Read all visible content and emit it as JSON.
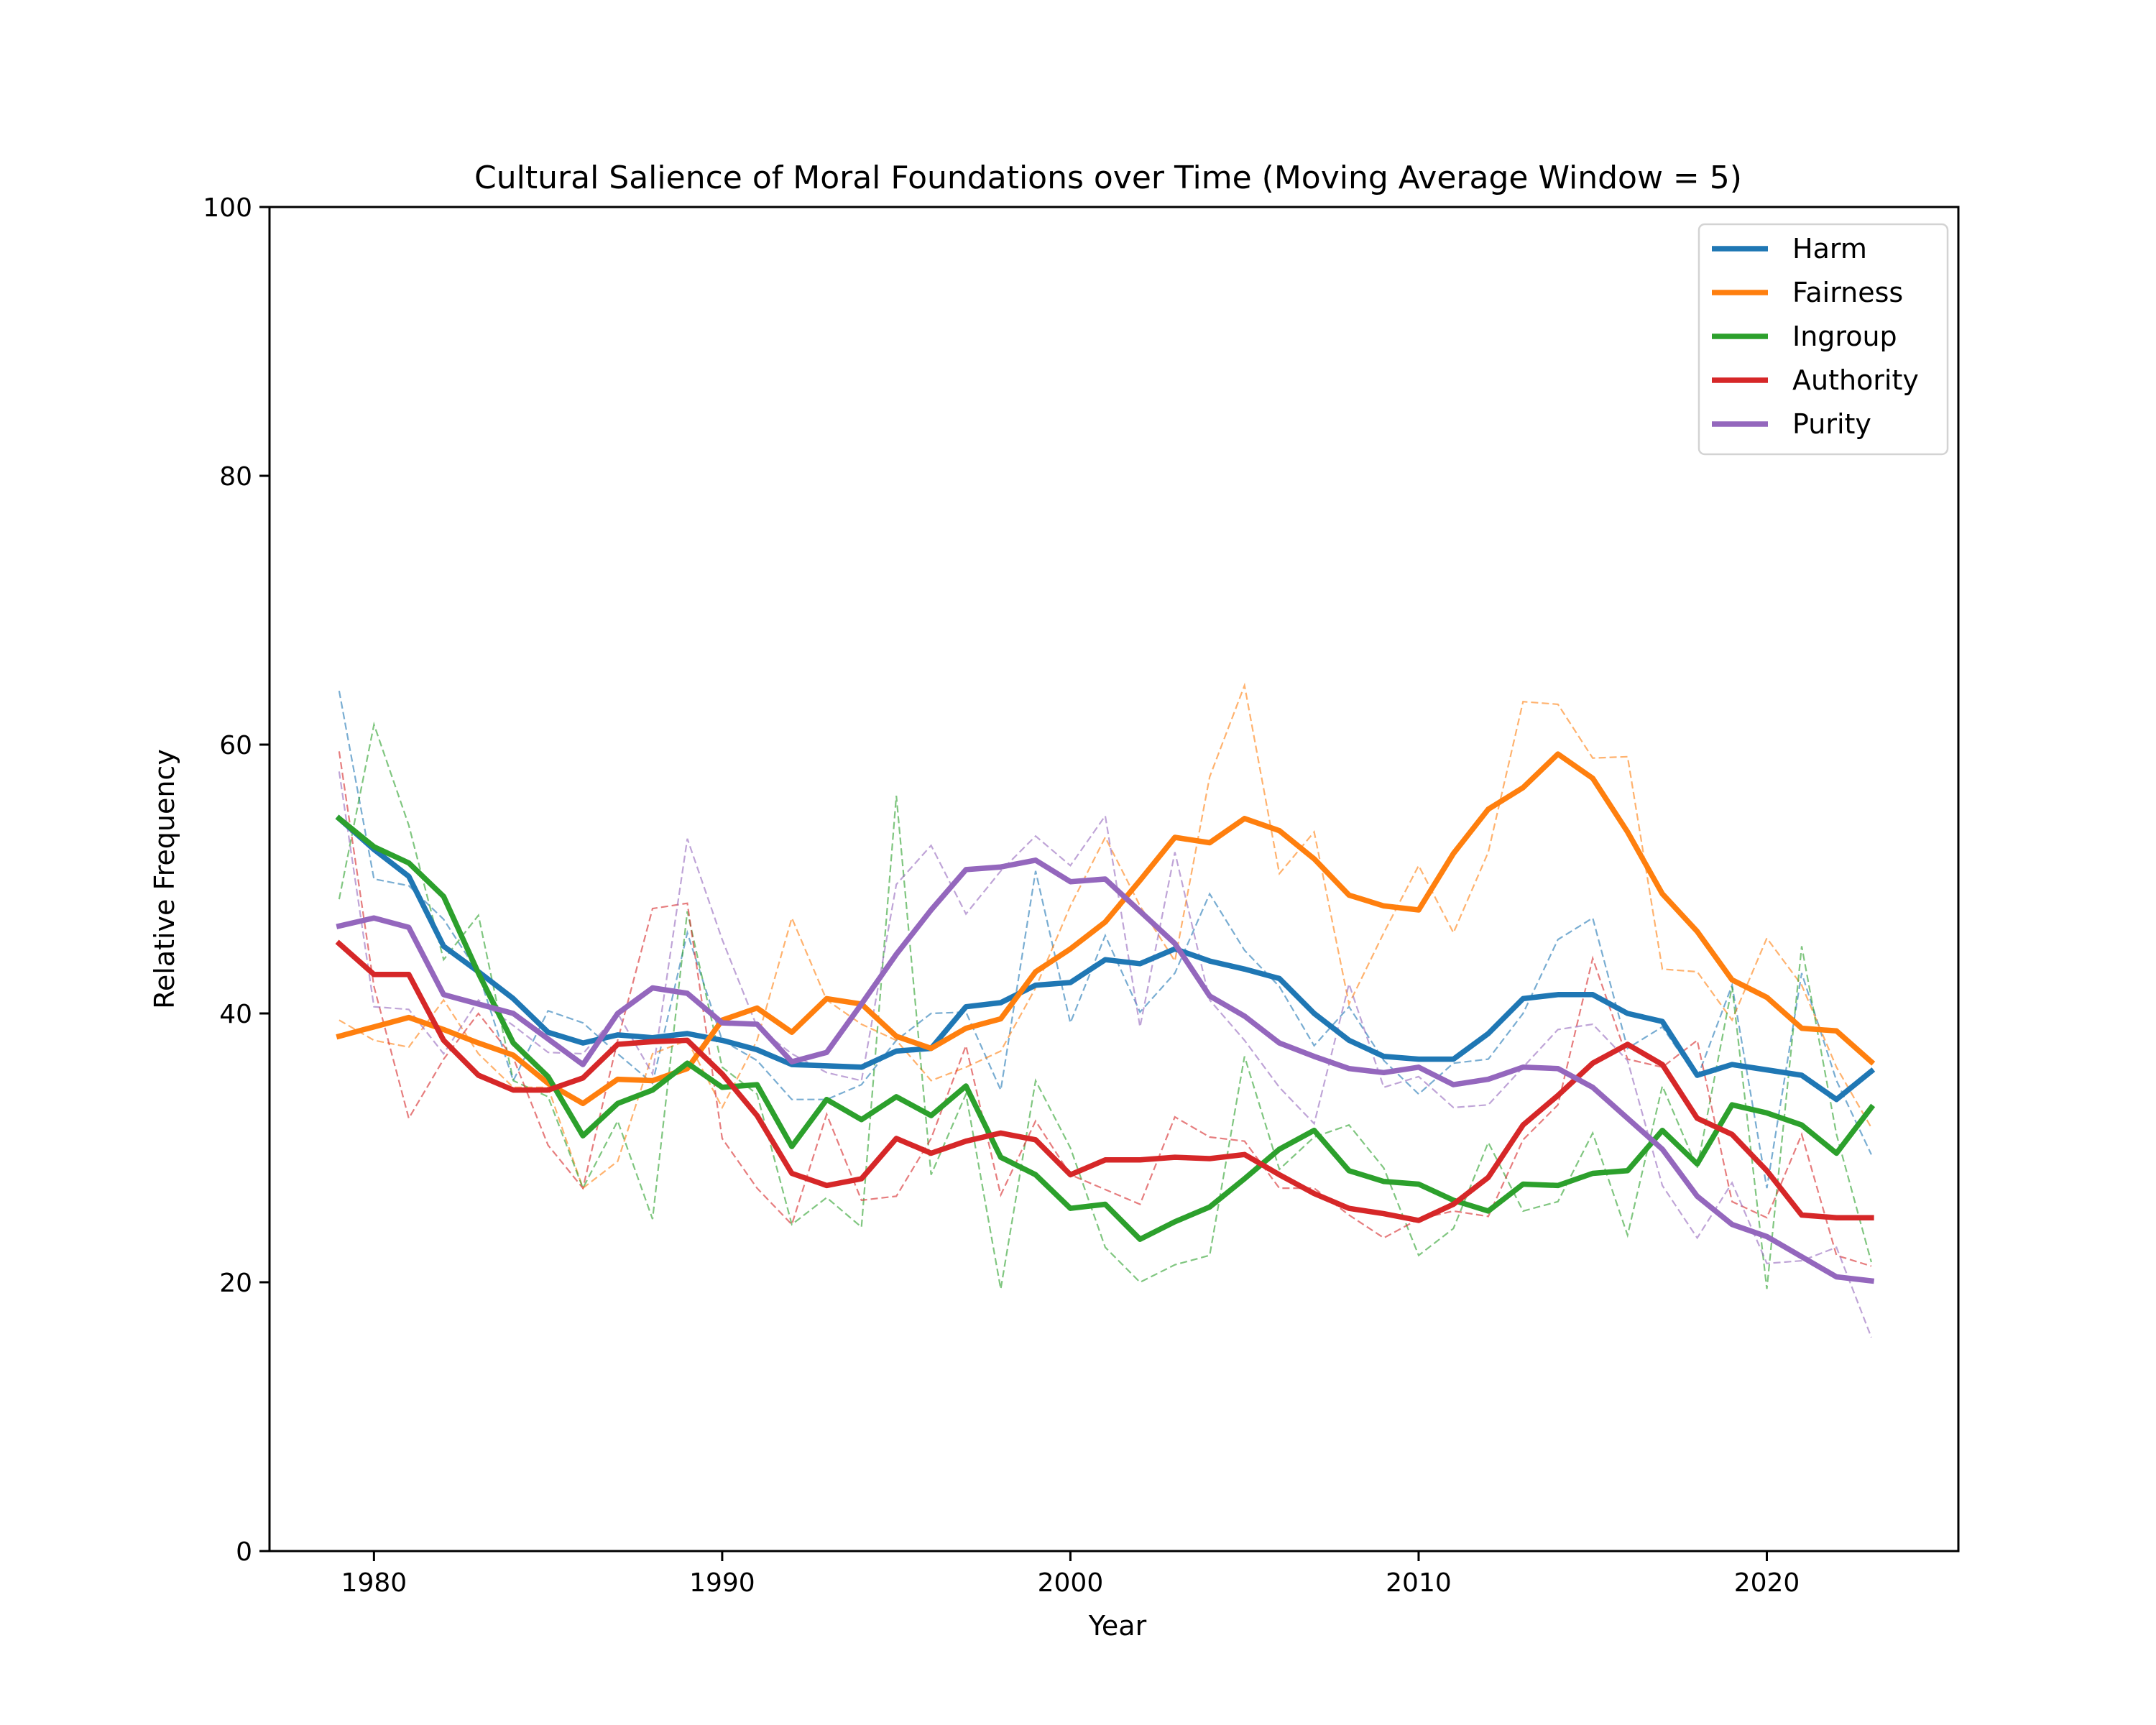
{
  "chart_data": {
    "type": "line",
    "title": "Cultural Salience of Moral Foundations over Time (Moving Average Window = 5)",
    "xlabel": "Year",
    "ylabel": "Relative Frequency",
    "xlim": [
      1977,
      2025.5
    ],
    "ylim": [
      0,
      100
    ],
    "xticks": [
      1980,
      1990,
      2000,
      2010,
      2020
    ],
    "yticks": [
      0,
      20,
      40,
      60,
      80,
      100
    ],
    "grid": false,
    "legend_position": "top-right",
    "x": [
      1979,
      1980,
      1981,
      1982,
      1983,
      1984,
      1985,
      1986,
      1987,
      1988,
      1989,
      1990,
      1991,
      1992,
      1993,
      1994,
      1995,
      1996,
      1997,
      1998,
      1999,
      2000,
      2001,
      2002,
      2003,
      2004,
      2005,
      2006,
      2007,
      2008,
      2009,
      2010,
      2011,
      2012,
      2013,
      2014,
      2015,
      2016,
      2017,
      2018,
      2019,
      2020,
      2021,
      2022,
      2023
    ],
    "series": [
      {
        "name": "Harm",
        "color": "#1f77b4",
        "moving_average": [
          54.5,
          52.2,
          50.2,
          45.0,
          43.1,
          41.1,
          38.6,
          37.8,
          38.4,
          38.2,
          38.5,
          38.0,
          37.3,
          36.2,
          36.1,
          36.0,
          37.2,
          37.4,
          40.5,
          40.8,
          42.1,
          42.3,
          44.0,
          43.7,
          44.8,
          43.9,
          43.3,
          42.6,
          40.0,
          38.0,
          36.8,
          36.6,
          36.6,
          38.5,
          41.1,
          41.4,
          41.4,
          40.0,
          39.4,
          35.4,
          36.2,
          35.8,
          35.4,
          33.6,
          35.7
        ],
        "raw": [
          64.0,
          50.0,
          49.5,
          47.0,
          43.0,
          35.0,
          40.2,
          39.3,
          37.0,
          34.8,
          46.0,
          38.0,
          36.5,
          33.6,
          33.6,
          34.7,
          38.0,
          40.0,
          40.1,
          34.3,
          50.6,
          39.3,
          45.8,
          40.1,
          43.0,
          48.9,
          44.7,
          42.0,
          37.6,
          40.5,
          36.5,
          34.0,
          36.3,
          36.6,
          40.0,
          45.5,
          47.1,
          37.4,
          39.0,
          35.2,
          42.1,
          27.0,
          43.0,
          35.0,
          29.5
        ]
      },
      {
        "name": "Fairness",
        "color": "#ff7f0e",
        "moving_average": [
          38.3,
          39.0,
          39.7,
          38.8,
          37.8,
          36.9,
          34.8,
          33.3,
          35.1,
          35.0,
          35.9,
          39.5,
          40.4,
          38.6,
          41.1,
          40.7,
          38.3,
          37.4,
          38.9,
          39.6,
          43.1,
          44.8,
          46.8,
          49.9,
          53.1,
          52.7,
          54.5,
          53.6,
          51.5,
          48.8,
          48.0,
          47.7,
          51.9,
          55.2,
          56.8,
          59.3,
          57.5,
          53.5,
          48.9,
          46.1,
          42.5,
          41.2,
          38.9,
          38.7,
          36.4
        ],
        "raw": [
          39.5,
          38.0,
          37.5,
          41.0,
          37.0,
          34.5,
          34.5,
          27.0,
          29.0,
          37.0,
          38.0,
          33.0,
          38.0,
          47.1,
          41.0,
          39.2,
          38.0,
          35.0,
          36.0,
          37.2,
          41.9,
          48.0,
          53.1,
          48.0,
          43.9,
          57.6,
          64.4,
          50.4,
          53.5,
          40.7,
          46.0,
          51.0,
          46.0,
          52.0,
          63.2,
          63.0,
          59.0,
          59.1,
          43.3,
          43.1,
          39.5,
          45.6,
          42.1,
          36.0,
          31.5
        ]
      },
      {
        "name": "Ingroup",
        "color": "#2ca02c",
        "moving_average": [
          54.5,
          52.4,
          51.2,
          48.7,
          43.0,
          37.8,
          35.3,
          30.9,
          33.3,
          34.3,
          36.3,
          34.5,
          34.7,
          30.1,
          33.6,
          32.1,
          33.8,
          32.4,
          34.6,
          29.3,
          28.0,
          25.5,
          25.8,
          23.2,
          24.5,
          25.6,
          27.7,
          29.9,
          31.3,
          28.3,
          27.5,
          27.3,
          26.1,
          25.3,
          27.3,
          27.2,
          28.1,
          28.3,
          31.3,
          28.8,
          33.2,
          32.6,
          31.7,
          29.6,
          33.0
        ],
        "raw": [
          48.5,
          61.5,
          54.0,
          44.0,
          47.3,
          35.0,
          33.8,
          27.0,
          32.0,
          24.7,
          47.6,
          36.0,
          34.0,
          24.3,
          26.3,
          24.1,
          56.2,
          28.0,
          34.0,
          19.5,
          35.0,
          30.0,
          22.6,
          20.0,
          21.3,
          22.0,
          36.8,
          28.4,
          30.8,
          31.7,
          28.5,
          22.0,
          24.0,
          30.4,
          25.3,
          26.0,
          31.1,
          23.5,
          34.6,
          28.5,
          42.0,
          19.5,
          45.0,
          31.0,
          21.5
        ]
      },
      {
        "name": "Authority",
        "color": "#d62728",
        "moving_average": [
          45.2,
          42.9,
          42.9,
          38.0,
          35.4,
          34.3,
          34.3,
          35.2,
          37.7,
          37.9,
          38.0,
          35.5,
          32.4,
          28.1,
          27.2,
          27.7,
          30.7,
          29.6,
          30.5,
          31.1,
          30.6,
          28.0,
          29.1,
          29.1,
          29.3,
          29.2,
          29.5,
          28.0,
          26.6,
          25.5,
          25.1,
          24.6,
          25.8,
          27.8,
          31.7,
          33.9,
          36.3,
          37.7,
          36.2,
          32.2,
          31.0,
          28.3,
          25.0,
          24.8,
          24.8
        ],
        "raw": [
          59.5,
          42.0,
          32.2,
          36.6,
          40.0,
          36.7,
          30.2,
          27.0,
          38.0,
          47.8,
          48.2,
          30.7,
          27.0,
          24.3,
          32.5,
          26.1,
          26.4,
          30.7,
          37.6,
          26.5,
          32.0,
          28.0,
          26.9,
          25.8,
          32.3,
          30.8,
          30.5,
          27.0,
          27.0,
          25.0,
          23.3,
          24.7,
          25.3,
          24.9,
          30.6,
          33.2,
          44.1,
          36.6,
          36.0,
          38.0,
          26.0,
          24.8,
          31.0,
          22.0,
          21.2
        ]
      },
      {
        "name": "Purity",
        "color": "#9467bd",
        "moving_average": [
          46.5,
          47.1,
          46.4,
          41.4,
          40.7,
          40.0,
          38.1,
          36.2,
          40.0,
          41.9,
          41.5,
          39.3,
          39.2,
          36.4,
          37.1,
          40.7,
          44.4,
          47.7,
          50.7,
          50.9,
          51.4,
          49.8,
          50.0,
          47.6,
          45.2,
          41.3,
          39.8,
          37.8,
          36.8,
          35.9,
          35.6,
          36.0,
          34.7,
          35.1,
          36.0,
          35.9,
          34.5,
          32.2,
          29.9,
          26.4,
          24.3,
          23.4,
          21.9,
          20.4,
          20.1
        ],
        "raw": [
          58.0,
          40.5,
          40.3,
          37.0,
          41.0,
          39.1,
          37.1,
          37.0,
          40.0,
          35.5,
          53.0,
          45.5,
          39.0,
          37.0,
          35.6,
          35.0,
          49.6,
          52.5,
          47.4,
          50.6,
          53.2,
          51.0,
          54.7,
          39.0,
          52.0,
          41.0,
          38.0,
          34.5,
          31.8,
          42.2,
          34.5,
          35.3,
          33.0,
          33.2,
          36.0,
          38.8,
          39.2,
          36.5,
          27.2,
          23.3,
          27.4,
          21.4,
          21.6,
          22.6,
          15.9
        ]
      }
    ]
  }
}
